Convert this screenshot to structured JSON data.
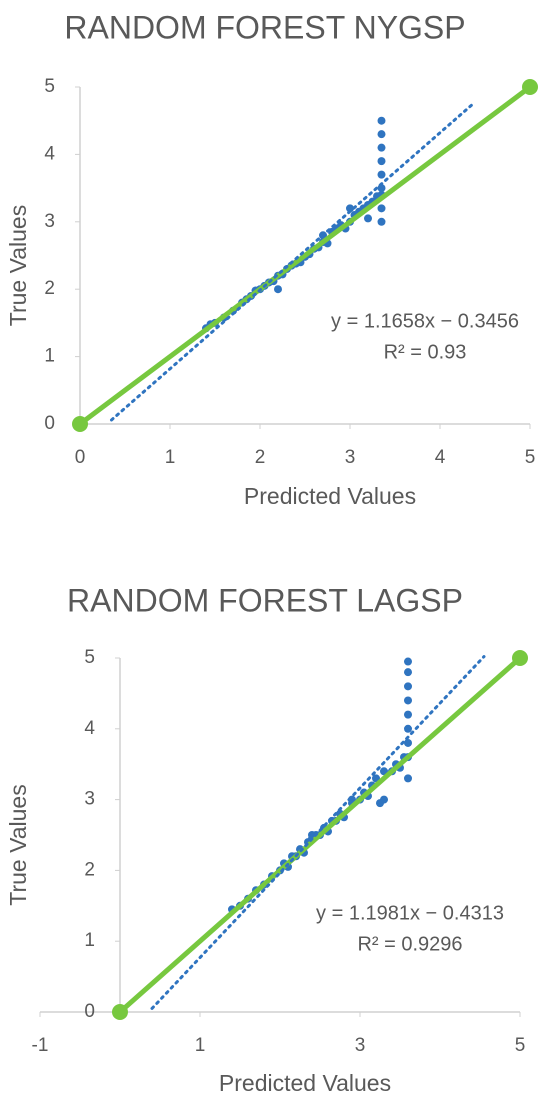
{
  "chart_data": [
    {
      "type": "scatter",
      "title": "RANDOM FOREST NYGSP",
      "xlabel": "Predicted Values",
      "ylabel": "True Values",
      "annotation": [
        "y = 1.1658x − 0.3456",
        "R² = 0.93"
      ],
      "xlim": [
        0,
        5
      ],
      "xticks": [
        0,
        1,
        2,
        3,
        4,
        5
      ],
      "ylim": [
        0,
        5
      ],
      "yticks": [
        0,
        1,
        2,
        3,
        4,
        5
      ],
      "series": [
        {
          "style": "points",
          "color": "#2f74c0",
          "x": [
            1.4,
            1.45,
            1.5,
            1.6,
            1.7,
            1.8,
            1.85,
            1.9,
            1.95,
            2.0,
            2.05,
            2.1,
            2.15,
            2.2,
            2.25,
            2.3,
            2.35,
            2.4,
            2.45,
            2.5,
            2.55,
            2.6,
            2.65,
            2.7,
            2.75,
            2.8,
            2.85,
            2.9,
            2.95,
            3.0,
            3.05,
            3.1,
            3.15,
            3.2,
            3.25,
            3.3,
            3.35,
            3.35,
            3.35,
            3.35,
            3.35,
            3.35,
            3.35,
            3.35,
            3.35,
            3.0,
            2.7,
            2.2,
            3.2
          ],
          "values": [
            1.42,
            1.48,
            1.5,
            1.58,
            1.68,
            1.8,
            1.85,
            1.9,
            1.98,
            2.0,
            2.05,
            2.1,
            2.12,
            2.2,
            2.22,
            2.3,
            2.35,
            2.38,
            2.4,
            2.48,
            2.52,
            2.6,
            2.62,
            2.7,
            2.68,
            2.85,
            2.9,
            2.95,
            2.9,
            3.0,
            3.1,
            3.15,
            3.2,
            3.25,
            3.3,
            3.38,
            3.5,
            3.7,
            3.9,
            4.1,
            4.3,
            4.5,
            3.2,
            3.0,
            3.4,
            3.2,
            2.8,
            2.0,
            3.05
          ]
        },
        {
          "style": "line-markers",
          "color": "#77c83f",
          "x": [
            0,
            5
          ],
          "values": [
            0,
            5
          ]
        },
        {
          "style": "dotted",
          "color": "#2f74c0",
          "x": [
            0.35,
            4.35
          ],
          "values": [
            0.06,
            4.73
          ]
        }
      ]
    },
    {
      "type": "scatter",
      "title": "RANDOM FOREST LAGSP",
      "xlabel": "Predicted Values",
      "ylabel": "True Values",
      "annotation": [
        "y = 1.1981x − 0.4313",
        "R² = 0.9296"
      ],
      "xlim": [
        -1,
        5
      ],
      "xticks": [
        -1,
        1,
        3,
        5
      ],
      "ylim": [
        0,
        5
      ],
      "yticks": [
        0,
        1,
        2,
        3,
        4,
        5
      ],
      "series": [
        {
          "style": "points",
          "color": "#2f74c0",
          "x": [
            1.4,
            1.5,
            1.6,
            1.7,
            1.8,
            1.9,
            2.0,
            2.05,
            2.1,
            2.15,
            2.2,
            2.25,
            2.3,
            2.35,
            2.4,
            2.45,
            2.5,
            2.55,
            2.6,
            2.65,
            2.7,
            2.75,
            2.8,
            2.9,
            3.0,
            3.05,
            3.1,
            3.15,
            3.2,
            3.3,
            3.4,
            3.45,
            3.5,
            3.55,
            3.6,
            3.6,
            3.6,
            3.6,
            3.6,
            3.6,
            3.6,
            3.6,
            3.6,
            2.4,
            3.3,
            2.9,
            3.25
          ],
          "values": [
            1.45,
            1.5,
            1.6,
            1.72,
            1.8,
            1.92,
            2.0,
            2.1,
            2.05,
            2.2,
            2.2,
            2.3,
            2.25,
            2.4,
            2.45,
            2.5,
            2.5,
            2.6,
            2.55,
            2.7,
            2.7,
            2.8,
            2.75,
            2.95,
            3.0,
            3.1,
            3.05,
            3.2,
            3.3,
            3.4,
            3.4,
            3.5,
            3.45,
            3.6,
            3.6,
            3.8,
            4.0,
            4.2,
            4.4,
            4.6,
            4.8,
            4.95,
            3.3,
            2.5,
            3.0,
            3.0,
            2.95
          ]
        },
        {
          "style": "line-markers",
          "color": "#77c83f",
          "x": [
            0,
            5
          ],
          "values": [
            0,
            5
          ]
        },
        {
          "style": "dotted",
          "color": "#2f74c0",
          "x": [
            0.4,
            4.55
          ],
          "values": [
            0.05,
            5.02
          ]
        }
      ]
    }
  ]
}
